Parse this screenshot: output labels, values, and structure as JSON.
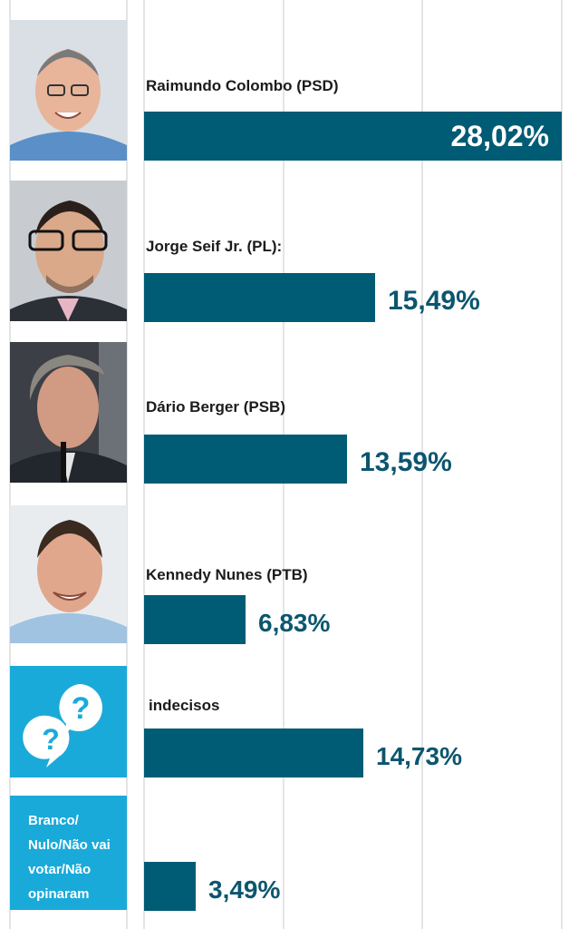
{
  "colors": {
    "bar": "#005b75",
    "value_text": "#0b566f",
    "cyan_panel": "#1aaad9",
    "grid": "#c8c8c8"
  },
  "chart_data": {
    "type": "bar",
    "orientation": "horizontal",
    "title": "",
    "xlabel": "",
    "ylabel": "",
    "grid": true,
    "xlim": [
      0,
      28.02
    ],
    "categories": [
      "Raimundo Colombo (PSD)",
      "Jorge Seif Jr. (PL):",
      "Dário Berger (PSB)",
      "Kennedy Nunes (PTB)",
      "indecisos",
      "Branco/ Nulo/Não vai votar/Não opinaram"
    ],
    "values": [
      28.02,
      15.49,
      13.59,
      6.83,
      14.73,
      3.49
    ],
    "value_labels": [
      "28,02%",
      "15,49%",
      "13,59%",
      "6,83%",
      "14,73%",
      "3,49%"
    ]
  },
  "panels": {
    "photos": [
      {
        "name": "candidate-photo-raimundo-colombo",
        "subject": "Raimundo Colombo"
      },
      {
        "name": "candidate-photo-jorge-seif",
        "subject": "Jorge Seif Jr."
      },
      {
        "name": "candidate-photo-dario-berger",
        "subject": "Dário Berger"
      },
      {
        "name": "candidate-photo-kennedy-nunes",
        "subject": "Kennedy Nunes"
      }
    ],
    "undecided_icon": "question-bubbles-icon",
    "other_text": "Branco/ Nulo/Não vai votar/Não opinaram"
  }
}
